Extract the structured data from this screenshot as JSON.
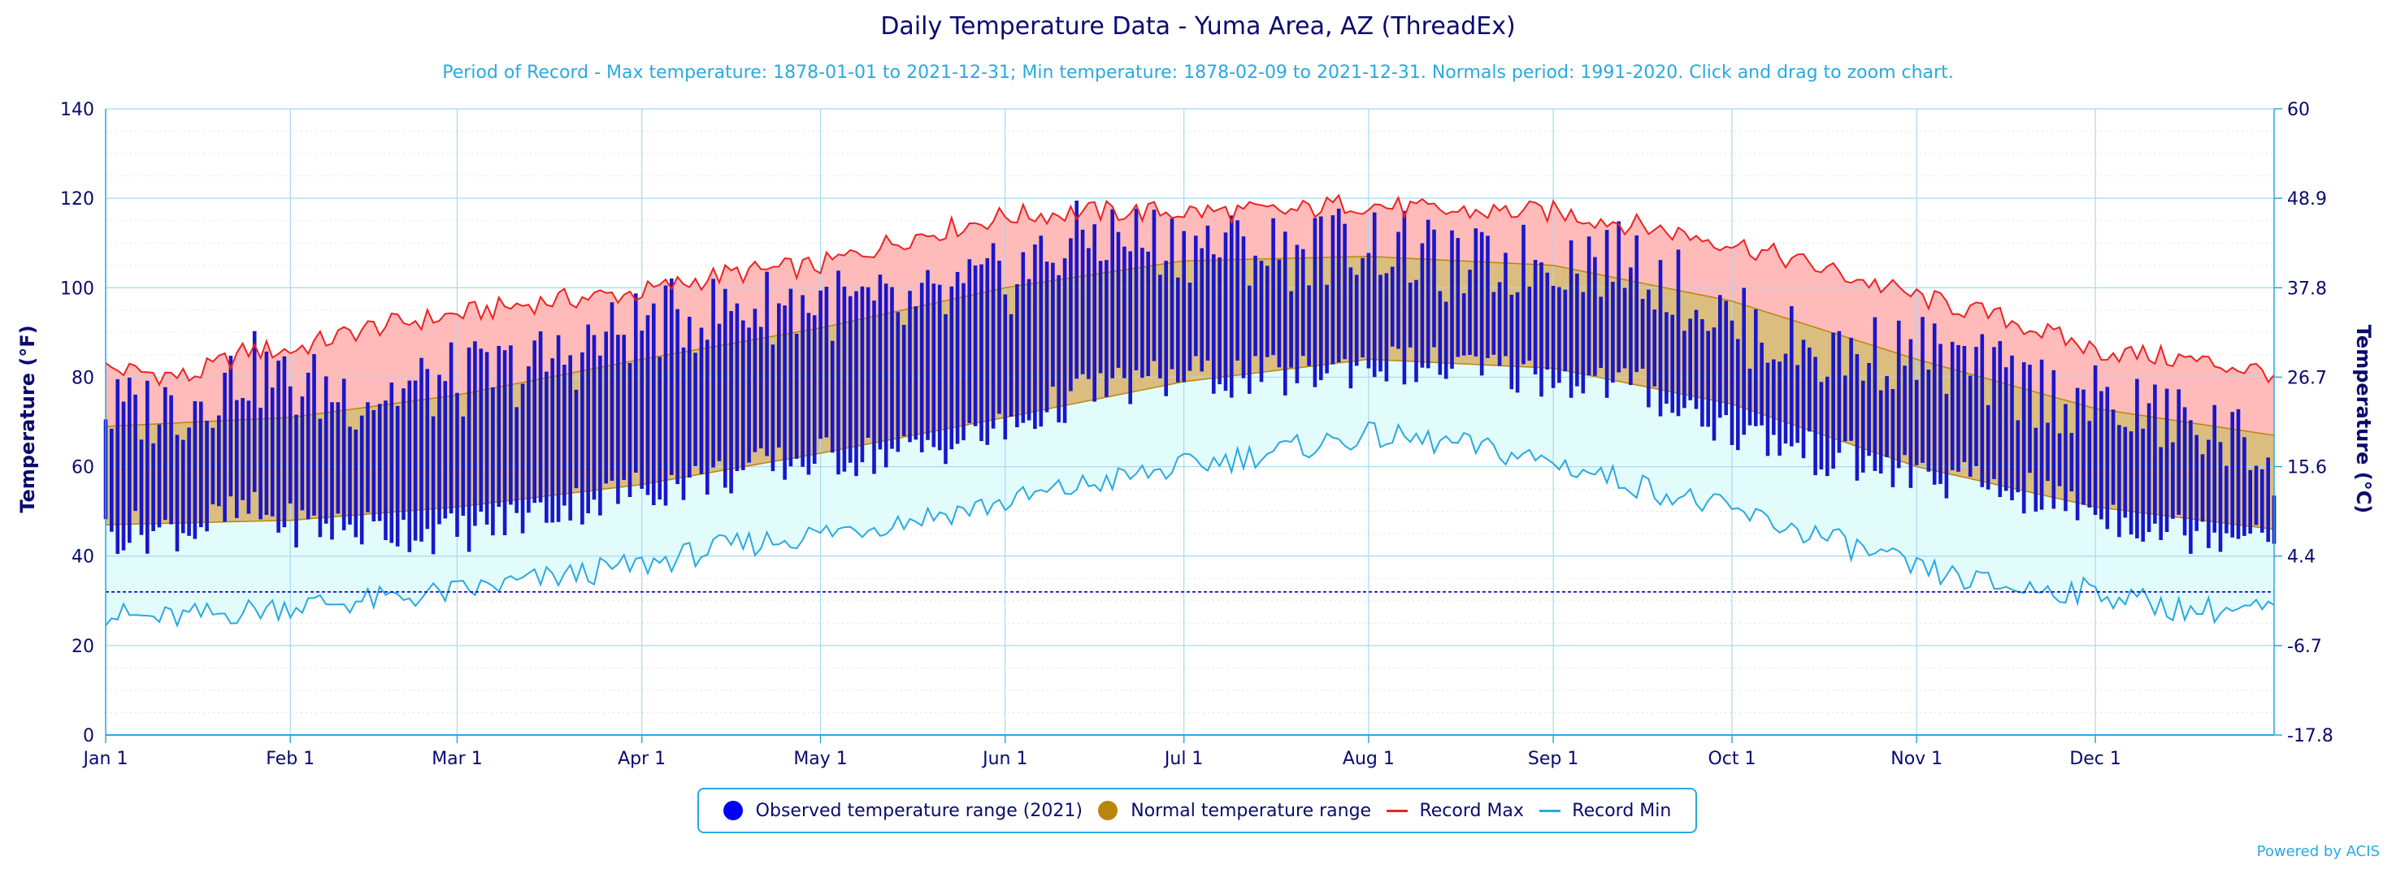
{
  "chart_data": {
    "type": "area",
    "title": "Daily Temperature Data - Yuma Area, AZ (ThreadEx)",
    "subtitle": "Period of Record - Max temperature: 1878-01-01 to 2021-12-31; Min temperature: 1878-02-09 to 2021-12-31. Normals period: 1991-2020. Click and drag to zoom chart.",
    "ylabel": "Temperature (°F)",
    "ylabel_right": "Temperature (°C)",
    "ylim": [
      0,
      140
    ],
    "yticks": [
      0,
      20,
      40,
      60,
      80,
      100,
      120,
      140
    ],
    "yticks_right": [
      {
        "label": "-17.8",
        "f": 0
      },
      {
        "label": "-6.7",
        "f": 20
      },
      {
        "label": "4.4",
        "f": 40
      },
      {
        "label": "15.6",
        "f": 60
      },
      {
        "label": "26.7",
        "f": 80
      },
      {
        "label": "37.8",
        "f": 100
      },
      {
        "label": "48.9",
        "f": 120
      },
      {
        "label": "60",
        "f": 140
      }
    ],
    "xlim_day": [
      1,
      365
    ],
    "xticks": [
      {
        "label": "Jan 1",
        "day": 1
      },
      {
        "label": "Feb 1",
        "day": 32
      },
      {
        "label": "Mar 1",
        "day": 60
      },
      {
        "label": "Apr 1",
        "day": 91
      },
      {
        "label": "May 1",
        "day": 121
      },
      {
        "label": "Jun 1",
        "day": 152
      },
      {
        "label": "Jul 1",
        "day": 182
      },
      {
        "label": "Aug 1",
        "day": 213
      },
      {
        "label": "Sep 1",
        "day": 244
      },
      {
        "label": "Oct 1",
        "day": 274
      },
      {
        "label": "Nov 1",
        "day": 305
      },
      {
        "label": "Dec 1",
        "day": 335
      }
    ],
    "freezing_line": 32,
    "record_max": {
      "name": "Record Max",
      "color": "#ee2222",
      "points": [
        [
          1,
          82
        ],
        [
          15,
          80
        ],
        [
          25,
          86
        ],
        [
          32,
          86
        ],
        [
          45,
          91
        ],
        [
          60,
          94
        ],
        [
          75,
          97
        ],
        [
          91,
          99
        ],
        [
          105,
          103
        ],
        [
          121,
          105
        ],
        [
          135,
          111
        ],
        [
          152,
          116
        ],
        [
          166,
          117
        ],
        [
          182,
          117
        ],
        [
          200,
          117
        ],
        [
          210,
          119
        ],
        [
          225,
          117
        ],
        [
          244,
          117
        ],
        [
          258,
          114
        ],
        [
          274,
          110
        ],
        [
          290,
          104
        ],
        [
          305,
          98
        ],
        [
          320,
          93
        ],
        [
          335,
          86
        ],
        [
          350,
          84
        ],
        [
          365,
          81
        ]
      ]
    },
    "record_min": {
      "name": "Record Min",
      "color": "#29a9e0",
      "points": [
        [
          1,
          27
        ],
        [
          10,
          26
        ],
        [
          20,
          27
        ],
        [
          32,
          29
        ],
        [
          45,
          30
        ],
        [
          60,
          32
        ],
        [
          75,
          35
        ],
        [
          91,
          38
        ],
        [
          105,
          42
        ],
        [
          121,
          45
        ],
        [
          135,
          48
        ],
        [
          152,
          52
        ],
        [
          166,
          56
        ],
        [
          182,
          60
        ],
        [
          200,
          64
        ],
        [
          213,
          67
        ],
        [
          228,
          65
        ],
        [
          244,
          61
        ],
        [
          258,
          56
        ],
        [
          274,
          50
        ],
        [
          290,
          44
        ],
        [
          305,
          37
        ],
        [
          320,
          33
        ],
        [
          335,
          32
        ],
        [
          350,
          28
        ],
        [
          365,
          28
        ]
      ]
    },
    "normal_range": {
      "name": "Normal temperature range",
      "color": "#b8860b",
      "high": [
        [
          1,
          69
        ],
        [
          32,
          71
        ],
        [
          60,
          76
        ],
        [
          91,
          84
        ],
        [
          121,
          91
        ],
        [
          152,
          100
        ],
        [
          182,
          106
        ],
        [
          213,
          107
        ],
        [
          244,
          105
        ],
        [
          274,
          97
        ],
        [
          305,
          84
        ],
        [
          335,
          73
        ],
        [
          365,
          67
        ]
      ],
      "low": [
        [
          1,
          47
        ],
        [
          32,
          48
        ],
        [
          60,
          51
        ],
        [
          91,
          56
        ],
        [
          121,
          63
        ],
        [
          152,
          71
        ],
        [
          182,
          79
        ],
        [
          213,
          84
        ],
        [
          244,
          82
        ],
        [
          274,
          74
        ],
        [
          305,
          60
        ],
        [
          335,
          51
        ],
        [
          365,
          46
        ]
      ]
    },
    "observed_2021": {
      "name": "Observed temperature range (2021)",
      "color": "#1a16c9",
      "points": [
        [
          1,
          72,
          45
        ],
        [
          15,
          74,
          46
        ],
        [
          25,
          82,
          50
        ],
        [
          32,
          78,
          47
        ],
        [
          45,
          76,
          46
        ],
        [
          60,
          79,
          45
        ],
        [
          75,
          83,
          50
        ],
        [
          91,
          92,
          55
        ],
        [
          105,
          95,
          58
        ],
        [
          121,
          97,
          62
        ],
        [
          135,
          94,
          63
        ],
        [
          152,
          102,
          68
        ],
        [
          166,
          112,
          77
        ],
        [
          182,
          110,
          80
        ],
        [
          200,
          108,
          80
        ],
        [
          213,
          111,
          83
        ],
        [
          228,
          104,
          82
        ],
        [
          244,
          107,
          80
        ],
        [
          258,
          106,
          78
        ],
        [
          274,
          92,
          68
        ],
        [
          290,
          85,
          62
        ],
        [
          305,
          86,
          58
        ],
        [
          320,
          79,
          55
        ],
        [
          335,
          74,
          50
        ],
        [
          350,
          70,
          45
        ],
        [
          365,
          62,
          47
        ]
      ]
    }
  },
  "legend": {
    "observed": "Observed temperature range (2021)",
    "normal": "Normal temperature range",
    "record_max": "Record Max",
    "record_min": "Record Min",
    "observed_color": "#0000ff",
    "normal_color": "#b8860b",
    "record_max_color": "#ee2222",
    "record_min_color": "#29a9e0"
  },
  "credits": "Powered by ACIS"
}
